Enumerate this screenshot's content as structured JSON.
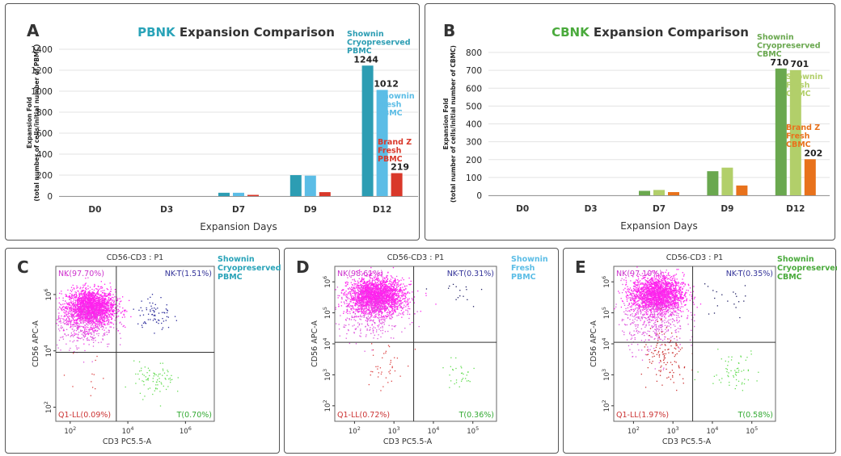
{
  "chart_data": [
    {
      "type": "bar",
      "panel_label": "A",
      "title_prefix": "PBNK",
      "title_suffix": " Expansion Comparison",
      "categories": [
        "D0",
        "D3",
        "D7",
        "D9",
        "D12"
      ],
      "xlabel": "Expansion Days",
      "ylabel_line1": "Expansion Fold",
      "ylabel_line2": "(total number of cells/initial number of PBMC)",
      "ylim": [
        0,
        1400
      ],
      "yticks": [
        0,
        200,
        400,
        600,
        800,
        1000,
        1200,
        1400
      ],
      "grid": true,
      "accent_color": "#29a3b8",
      "series": [
        {
          "label_lines": [
            "Shownin",
            "Cryopreserved",
            "PBMC"
          ],
          "color": "#2c9db3",
          "values": [
            0,
            0,
            32,
            200,
            1244
          ],
          "end_label": "1244"
        },
        {
          "label_lines": [
            "Shownin",
            "Fresh",
            "PBMC"
          ],
          "color": "#5bbde6",
          "values": [
            0,
            0,
            32,
            195,
            1012
          ],
          "end_label": "1012"
        },
        {
          "label_lines": [
            "Brand Z",
            "Fresh",
            "PBMC"
          ],
          "color": "#d9382a",
          "values": [
            0,
            0,
            12,
            38,
            219
          ],
          "end_label": "219"
        }
      ]
    },
    {
      "type": "bar",
      "panel_label": "B",
      "title_prefix": "CBNK",
      "title_suffix": " Expansion Comparison",
      "categories": [
        "D0",
        "D3",
        "D7",
        "D9",
        "D12"
      ],
      "xlabel": "Expansion Days",
      "ylabel_line1": "Expansion Fold",
      "ylabel_line2": "(total number of cells/initial number of CBMC)",
      "ylim": [
        0,
        800
      ],
      "yticks": [
        0,
        100,
        200,
        300,
        400,
        500,
        600,
        700,
        800
      ],
      "grid": true,
      "accent_color": "#4aaa3c",
      "series": [
        {
          "label_lines": [
            "Shownin",
            "Cryopreserved",
            "CBMC"
          ],
          "color": "#6aa84f",
          "values": [
            0,
            0,
            25,
            135,
            710
          ],
          "end_label": "710"
        },
        {
          "label_lines": [
            "Shownin",
            "Fresh",
            "CBMC"
          ],
          "color": "#b2cf6a",
          "values": [
            0,
            0,
            30,
            155,
            701
          ],
          "end_label": "701"
        },
        {
          "label_lines": [
            "Brand Z",
            "Fresh",
            "CBMC"
          ],
          "color": "#e8721c",
          "values": [
            0,
            0,
            18,
            55,
            202
          ],
          "end_label": "202"
        }
      ]
    },
    {
      "type": "scatter",
      "panel_label": "C",
      "title": "CD56-CD3 : P1",
      "xlabel": "CD3 PC5.5-A",
      "ylabel": "CD56 APC-A",
      "scale": "log",
      "xticks": [
        2,
        4,
        6
      ],
      "yticks": [
        2,
        4,
        6
      ],
      "xlim": [
        1.5,
        7
      ],
      "ylim": [
        1.5,
        7
      ],
      "sample_lines": [
        "Shownin",
        "Cryopreserved",
        "PBMC"
      ],
      "sample_color": "#29a3b8",
      "quadrants": {
        "NK": "NK(97.70%)",
        "NKT": "NK-T(1.51%)",
        "LL": "Q1-LL(0.09%)",
        "T": "T(0.70%)"
      },
      "gate": {
        "x": 3.6,
        "y": 3.95
      }
    },
    {
      "type": "scatter",
      "panel_label": "D",
      "title": "CD56-CD3 : P1",
      "xlabel": "CD3 PC5.5-A",
      "ylabel": "CD56 APC-A",
      "scale": "log",
      "xticks": [
        2,
        3,
        4,
        5
      ],
      "yticks": [
        2,
        3,
        4,
        5,
        6
      ],
      "xlim": [
        1.5,
        5.6
      ],
      "ylim": [
        1.5,
        6.5
      ],
      "sample_lines": [
        "Shownin",
        "Fresh",
        "PBMC"
      ],
      "sample_color": "#5bbde6",
      "quadrants": {
        "NK": "NK(98.61%)",
        "NKT": "NK-T(0.31%)",
        "LL": "Q1-LL(0.72%)",
        "T": "T(0.36%)"
      },
      "gate": {
        "x": 3.5,
        "y": 4.05
      }
    },
    {
      "type": "scatter",
      "panel_label": "E",
      "title": "CD56-CD3 : P1",
      "xlabel": "CD3 PC5.5-A",
      "ylabel": "CD56 APC-A",
      "scale": "log",
      "xticks": [
        2,
        3,
        4,
        5
      ],
      "yticks": [
        2,
        3,
        4,
        5,
        6
      ],
      "xlim": [
        1.5,
        5.6
      ],
      "ylim": [
        1.5,
        6.5
      ],
      "sample_lines": [
        "Shownin",
        "Cryopreserved",
        "CBMC"
      ],
      "sample_color": "#4aaa3c",
      "quadrants": {
        "NK": "NK(97.10%)",
        "NKT": "NK-T(0.35%)",
        "LL": "Q1-LL(1.97%)",
        "T": "T(0.58%)"
      },
      "gate": {
        "x": 3.5,
        "y": 4.05
      }
    }
  ]
}
